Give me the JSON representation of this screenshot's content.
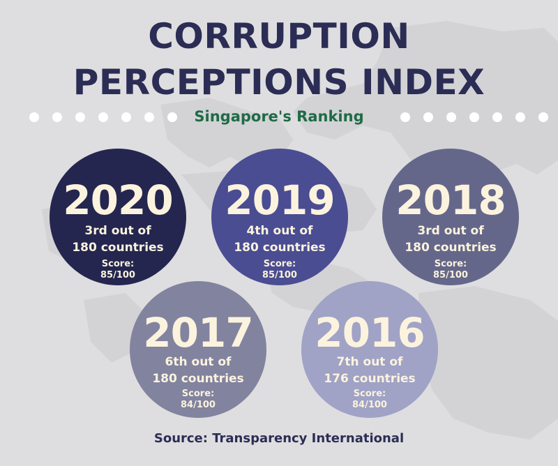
{
  "title": {
    "line1": "CORRUPTION",
    "line2": "PERCEPTIONS INDEX"
  },
  "subtitle": "Singapore's Ranking",
  "colors": {
    "title": "#2b2d55",
    "subtitle": "#1f6b46",
    "circle_text": "#fbf3de",
    "background": "#dedee0"
  },
  "rankings": [
    {
      "year": "2020",
      "rank_line1": "3rd out of",
      "rank_line2": "180 countries",
      "score_label": "Score:",
      "score_value": "85/100",
      "color": "#24264f"
    },
    {
      "year": "2019",
      "rank_line1": "4th out of",
      "rank_line2": "180 countries",
      "score_label": "Score:",
      "score_value": "85/100",
      "color": "#4a4d92"
    },
    {
      "year": "2018",
      "rank_line1": "3rd out of",
      "rank_line2": "180 countries",
      "score_label": "Score:",
      "score_value": "85/100",
      "color": "#65678a"
    },
    {
      "year": "2017",
      "rank_line1": "6th out of",
      "rank_line2": "180 countries",
      "score_label": "Score:",
      "score_value": "84/100",
      "color": "#82839f"
    },
    {
      "year": "2016",
      "rank_line1": "7th out of",
      "rank_line2": "176 countries",
      "score_label": "Score:",
      "score_value": "84/100",
      "color": "#a0a2c6"
    }
  ],
  "source": "Source: Transparency International"
}
